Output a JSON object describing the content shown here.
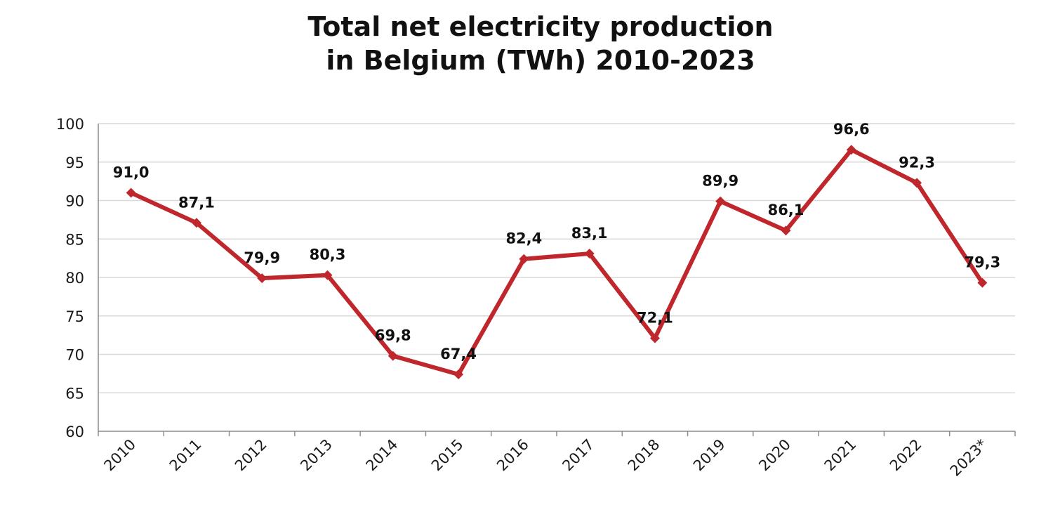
{
  "chart_data": {
    "type": "line",
    "title_lines": [
      "Total net electricity production",
      "in Belgium (TWh) 2010-2023"
    ],
    "categories": [
      "2010",
      "2011",
      "2012",
      "2013",
      "2014",
      "2015",
      "2016",
      "2017",
      "2018",
      "2019",
      "2020",
      "2021",
      "2022",
      "2023*"
    ],
    "series": [
      {
        "values": [
          91.0,
          87.1,
          79.9,
          80.3,
          69.8,
          67.4,
          82.4,
          83.1,
          72.1,
          89.9,
          86.1,
          96.6,
          92.3,
          79.3
        ],
        "data_labels": [
          "91,0",
          "87,1",
          "79,9",
          "80,3",
          "69,8",
          "67,4",
          "82,4",
          "83,1",
          "72,1",
          "89,9",
          "86,1",
          "96,6",
          "92,3",
          "79,3"
        ],
        "color": "#c0272d",
        "marker": "diamond"
      }
    ],
    "ylim": [
      60,
      100
    ],
    "yticks": [
      "60",
      "65",
      "70",
      "75",
      "80",
      "85",
      "90",
      "95",
      "100"
    ],
    "grid": true,
    "legend": "none"
  }
}
